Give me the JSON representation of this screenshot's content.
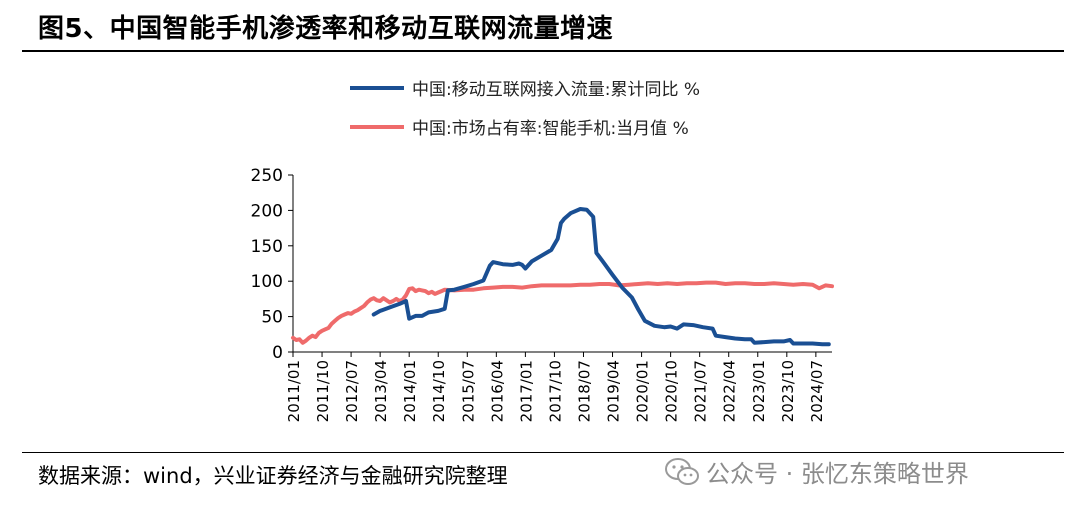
{
  "header": {
    "title": "图5、中国智能手机渗透率和移动互联网流量增速"
  },
  "footer": {
    "source": "数据来源：wind，兴业证券经济与金融研究院整理",
    "watermark": "公众号 · 张忆东策略世界",
    "watermark_icon": "wechat-icon"
  },
  "colors": {
    "traffic": "#1a4f93",
    "penetration": "#ef6b6b"
  },
  "chart_data": {
    "type": "line",
    "title": "",
    "xlabel": "",
    "ylabel": "",
    "ylim": [
      0,
      250
    ],
    "yticks": [
      0,
      50,
      100,
      150,
      200,
      250
    ],
    "xlim": [
      "2011/01",
      "2024/12"
    ],
    "xticks": [
      "2011/01",
      "2011/10",
      "2012/07",
      "2013/04",
      "2014/01",
      "2014/10",
      "2015/07",
      "2016/04",
      "2017/01",
      "2017/10",
      "2018/07",
      "2019/04",
      "2020/01",
      "2020/10",
      "2021/07",
      "2022/04",
      "2023/01",
      "2023/10",
      "2024/07"
    ],
    "grid": false,
    "legend_position": "top",
    "series": [
      {
        "name": "中国:移动互联网接入流量:累计同比 %",
        "color": "#1a4f93",
        "points": [
          [
            "2013/02",
            53
          ],
          [
            "2013/04",
            58
          ],
          [
            "2013/07",
            63
          ],
          [
            "2013/10",
            68
          ],
          [
            "2013/12",
            72
          ],
          [
            "2014/01",
            47
          ],
          [
            "2014/03",
            51
          ],
          [
            "2014/05",
            51
          ],
          [
            "2014/07",
            56
          ],
          [
            "2014/10",
            58
          ],
          [
            "2014/12",
            61
          ],
          [
            "2015/01",
            87
          ],
          [
            "2015/03",
            88
          ],
          [
            "2015/06",
            92
          ],
          [
            "2015/09",
            96
          ],
          [
            "2015/12",
            101
          ],
          [
            "2016/02",
            122
          ],
          [
            "2016/03",
            127
          ],
          [
            "2016/06",
            124
          ],
          [
            "2016/09",
            123
          ],
          [
            "2016/11",
            125
          ],
          [
            "2016/12",
            123
          ],
          [
            "2017/01",
            118
          ],
          [
            "2017/03",
            128
          ],
          [
            "2017/06",
            136
          ],
          [
            "2017/09",
            144
          ],
          [
            "2017/11",
            160
          ],
          [
            "2017/12",
            182
          ],
          [
            "2018/01",
            188
          ],
          [
            "2018/03",
            196
          ],
          [
            "2018/06",
            202
          ],
          [
            "2018/08",
            201
          ],
          [
            "2018/10",
            191
          ],
          [
            "2018/11",
            140
          ],
          [
            "2019/01",
            128
          ],
          [
            "2019/04",
            109
          ],
          [
            "2019/07",
            91
          ],
          [
            "2019/10",
            77
          ],
          [
            "2019/12",
            60
          ],
          [
            "2020/02",
            44
          ],
          [
            "2020/05",
            37
          ],
          [
            "2020/08",
            35
          ],
          [
            "2020/10",
            36
          ],
          [
            "2020/12",
            33
          ],
          [
            "2021/02",
            39
          ],
          [
            "2021/05",
            38
          ],
          [
            "2021/08",
            35
          ],
          [
            "2021/11",
            33
          ],
          [
            "2021/12",
            23
          ],
          [
            "2022/03",
            21
          ],
          [
            "2022/06",
            19
          ],
          [
            "2022/09",
            18
          ],
          [
            "2022/11",
            18
          ],
          [
            "2022/12",
            13
          ],
          [
            "2023/03",
            14
          ],
          [
            "2023/06",
            15
          ],
          [
            "2023/09",
            15
          ],
          [
            "2023/11",
            17
          ],
          [
            "2023/12",
            12
          ],
          [
            "2024/03",
            12
          ],
          [
            "2024/06",
            12
          ],
          [
            "2024/09",
            11
          ],
          [
            "2024/11",
            11
          ]
        ]
      },
      {
        "name": "中国:市场占有率:智能手机:当月值 %",
        "color": "#ef6b6b",
        "points": [
          [
            "2011/01",
            20
          ],
          [
            "2011/02",
            17
          ],
          [
            "2011/03",
            18
          ],
          [
            "2011/04",
            13
          ],
          [
            "2011/05",
            16
          ],
          [
            "2011/06",
            20
          ],
          [
            "2011/07",
            23
          ],
          [
            "2011/08",
            21
          ],
          [
            "2011/09",
            27
          ],
          [
            "2011/10",
            30
          ],
          [
            "2011/11",
            32
          ],
          [
            "2011/12",
            34
          ],
          [
            "2012/01",
            40
          ],
          [
            "2012/02",
            44
          ],
          [
            "2012/03",
            48
          ],
          [
            "2012/04",
            51
          ],
          [
            "2012/05",
            53
          ],
          [
            "2012/06",
            55
          ],
          [
            "2012/07",
            54
          ],
          [
            "2012/08",
            57
          ],
          [
            "2012/09",
            59
          ],
          [
            "2012/10",
            62
          ],
          [
            "2012/11",
            65
          ],
          [
            "2012/12",
            70
          ],
          [
            "2013/01",
            74
          ],
          [
            "2013/02",
            76
          ],
          [
            "2013/03",
            73
          ],
          [
            "2013/04",
            72
          ],
          [
            "2013/05",
            76
          ],
          [
            "2013/06",
            73
          ],
          [
            "2013/07",
            70
          ],
          [
            "2013/08",
            72
          ],
          [
            "2013/09",
            75
          ],
          [
            "2013/10",
            72
          ],
          [
            "2013/11",
            74
          ],
          [
            "2013/12",
            80
          ],
          [
            "2014/01",
            89
          ],
          [
            "2014/02",
            90
          ],
          [
            "2014/03",
            86
          ],
          [
            "2014/04",
            88
          ],
          [
            "2014/05",
            87
          ],
          [
            "2014/06",
            86
          ],
          [
            "2014/07",
            83
          ],
          [
            "2014/08",
            85
          ],
          [
            "2014/09",
            82
          ],
          [
            "2014/10",
            84
          ],
          [
            "2014/11",
            86
          ],
          [
            "2014/12",
            88
          ],
          [
            "2015/03",
            87
          ],
          [
            "2015/06",
            88
          ],
          [
            "2015/09",
            88
          ],
          [
            "2015/12",
            90
          ],
          [
            "2016/03",
            91
          ],
          [
            "2016/06",
            92
          ],
          [
            "2016/09",
            92
          ],
          [
            "2016/12",
            91
          ],
          [
            "2017/03",
            93
          ],
          [
            "2017/06",
            94
          ],
          [
            "2017/09",
            94
          ],
          [
            "2017/12",
            94
          ],
          [
            "2018/03",
            94
          ],
          [
            "2018/06",
            95
          ],
          [
            "2018/09",
            95
          ],
          [
            "2018/12",
            96
          ],
          [
            "2019/03",
            96
          ],
          [
            "2019/06",
            94
          ],
          [
            "2019/09",
            95
          ],
          [
            "2019/12",
            96
          ],
          [
            "2020/03",
            97
          ],
          [
            "2020/06",
            96
          ],
          [
            "2020/09",
            97
          ],
          [
            "2020/12",
            96
          ],
          [
            "2021/03",
            97
          ],
          [
            "2021/06",
            97
          ],
          [
            "2021/09",
            98
          ],
          [
            "2021/12",
            98
          ],
          [
            "2022/03",
            96
          ],
          [
            "2022/06",
            97
          ],
          [
            "2022/09",
            97
          ],
          [
            "2022/12",
            96
          ],
          [
            "2023/03",
            96
          ],
          [
            "2023/06",
            97
          ],
          [
            "2023/09",
            96
          ],
          [
            "2023/12",
            95
          ],
          [
            "2024/03",
            96
          ],
          [
            "2024/06",
            95
          ],
          [
            "2024/08",
            90
          ],
          [
            "2024/10",
            94
          ],
          [
            "2024/12",
            93
          ]
        ]
      }
    ]
  }
}
